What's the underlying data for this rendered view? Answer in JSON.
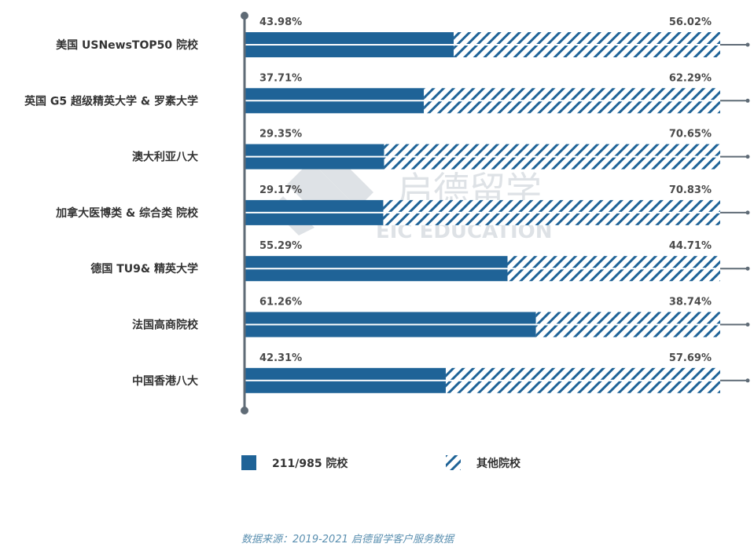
{
  "chart_data": {
    "type": "bar",
    "stacked": true,
    "orientation": "horizontal",
    "categories": [
      "美国 USNewsTOP50 院校",
      "英国 G5 超级精英大学 & 罗素大学",
      "澳大利亚八大",
      "加拿大医博类 & 综合类 院校",
      "德国 TU9& 精英大学",
      "法国高商院校",
      "中国香港八大"
    ],
    "series": [
      {
        "name": "211/985 院校",
        "values": [
          43.98,
          37.71,
          29.35,
          29.17,
          55.29,
          61.26,
          42.31
        ],
        "labels": [
          "43.98%",
          "37.71%",
          "29.35%",
          "29.17%",
          "55.29%",
          "61.26%",
          "42.31%"
        ]
      },
      {
        "name": "其他院校",
        "values": [
          56.02,
          62.29,
          70.65,
          70.83,
          44.71,
          38.74,
          57.69
        ],
        "labels": [
          "56.02%",
          "62.29%",
          "70.65%",
          "70.83%",
          "44.71%",
          "38.74%",
          "57.69%"
        ]
      }
    ],
    "xlim": [
      0,
      100
    ],
    "legend_position": "bottom-left",
    "colors": {
      "primary": "#1f6397",
      "hatch": "#1f6397",
      "axis": "#5f6b76"
    }
  },
  "source_note": "数据来源：2019-2021 启德留学客户服务数据",
  "watermark": {
    "text_cn": "启德留学",
    "text_en": "EIC EDUCATION"
  }
}
